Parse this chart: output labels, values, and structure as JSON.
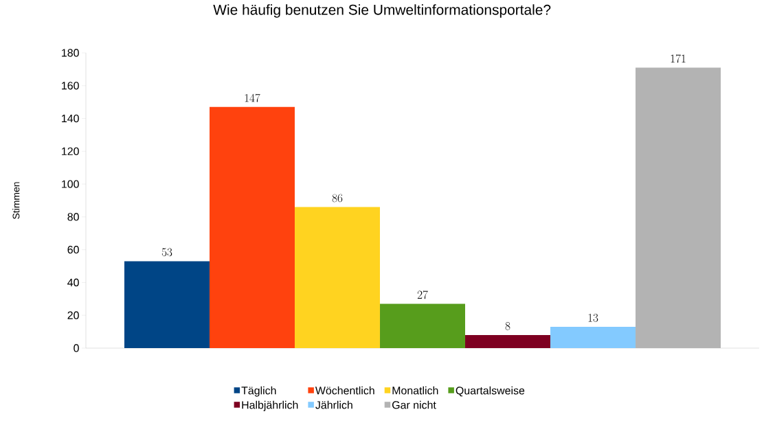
{
  "chart_data": {
    "type": "bar",
    "title": "Wie häufig benutzen Sie Umweltinformationsportale?",
    "ylabel": "Stimmen",
    "categories": [
      null
    ],
    "series": [
      {
        "name": "Täglich",
        "color": "#004586",
        "values": [
          53
        ]
      },
      {
        "name": "Wöchentlich",
        "color": "#ff420e",
        "values": [
          147
        ]
      },
      {
        "name": "Monatlich",
        "color": "#ffd320",
        "values": [
          86
        ]
      },
      {
        "name": "Quartalsweise",
        "color": "#579d1c",
        "values": [
          27
        ]
      },
      {
        "name": "Halbjährlich",
        "color": "#7e0021",
        "values": [
          8
        ]
      },
      {
        "name": "Jährlich",
        "color": "#83caff",
        "values": [
          13
        ]
      },
      {
        "name": "Gar nicht",
        "color": "#b3b3b3",
        "values": [
          171
        ]
      }
    ],
    "ylim": [
      0,
      180
    ],
    "yticks": [
      0,
      20,
      40,
      60,
      80,
      100,
      120,
      140,
      160,
      180
    ],
    "grid": false,
    "legend": "bottom",
    "data_labels": true
  }
}
